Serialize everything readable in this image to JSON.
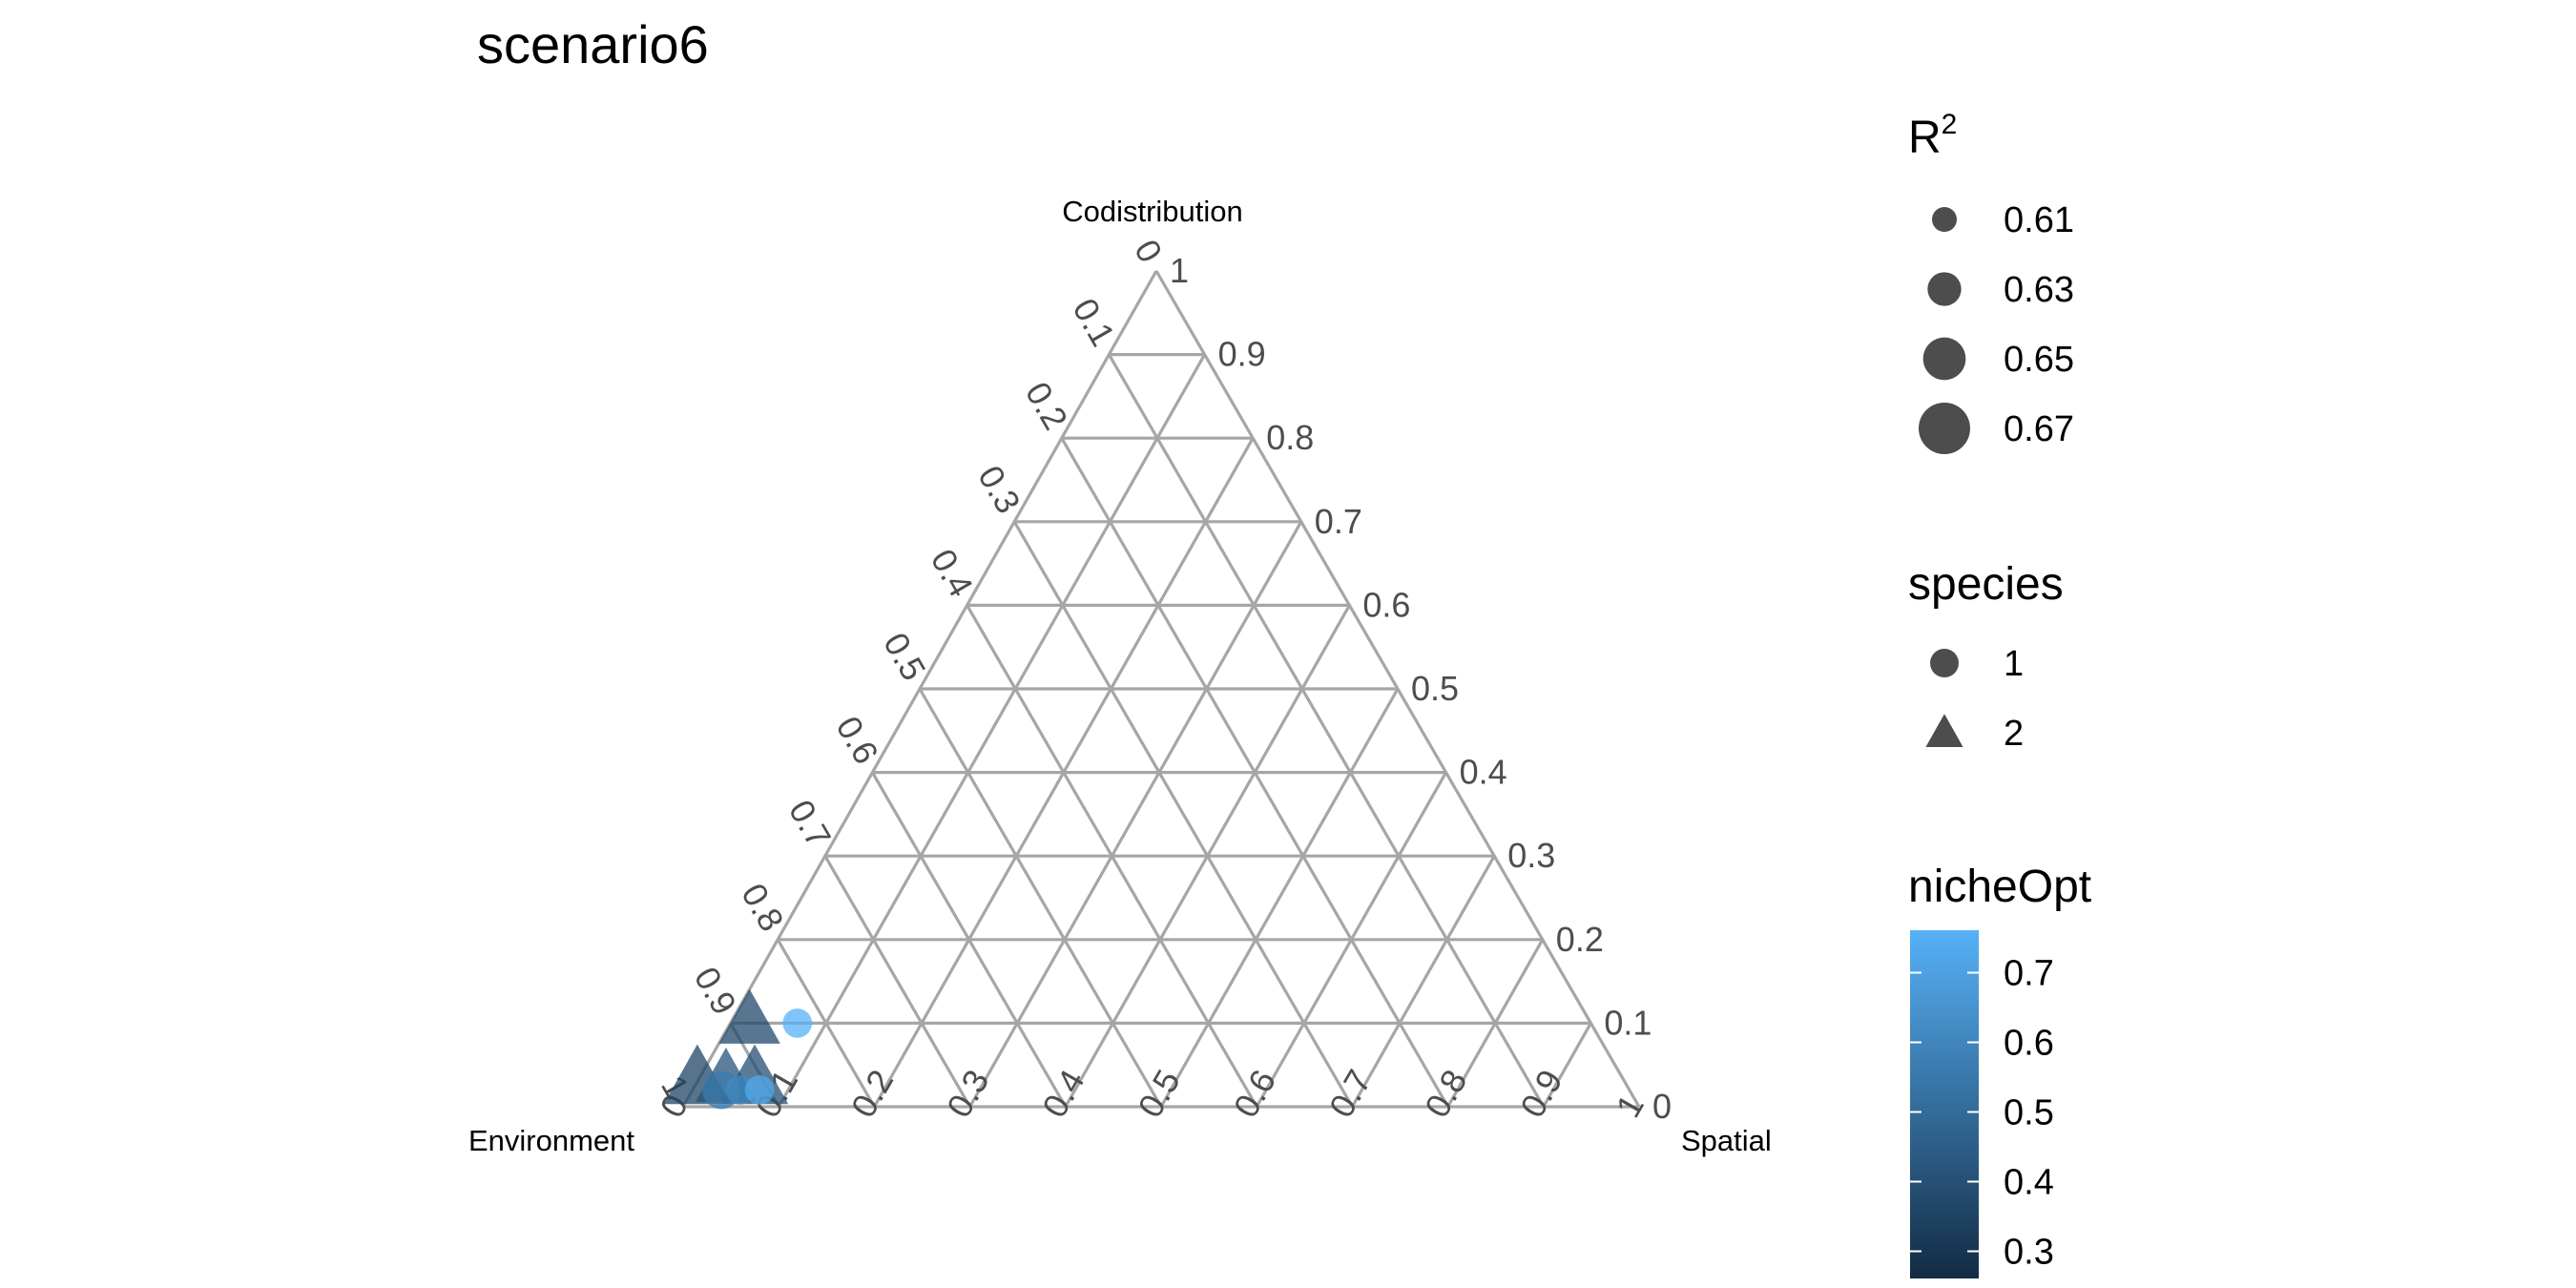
{
  "chart_data": {
    "type": "scatter",
    "subtype": "ternary",
    "title": "scenario6",
    "axes": {
      "top": "Codistribution",
      "left": "Environment",
      "right": "Spatial"
    },
    "ticks": [
      "0",
      "0.1",
      "0.2",
      "0.3",
      "0.4",
      "0.5",
      "0.6",
      "0.7",
      "0.8",
      "0.9",
      "1"
    ],
    "grid": true,
    "points": [
      {
        "environment": 0.97,
        "spatial": 0.0,
        "codistribution": 0.03,
        "species": 2,
        "r2": 0.67,
        "nicheOpt": 0.35
      },
      {
        "environment": 0.94,
        "spatial": 0.03,
        "codistribution": 0.03,
        "species": 2,
        "r2": 0.66,
        "nicheOpt": 0.4
      },
      {
        "environment": 0.91,
        "spatial": 0.06,
        "codistribution": 0.03,
        "species": 2,
        "r2": 0.67,
        "nicheOpt": 0.38
      },
      {
        "environment": 0.88,
        "spatial": 0.02,
        "codistribution": 0.1,
        "species": 2,
        "r2": 0.66,
        "nicheOpt": 0.36
      },
      {
        "environment": 0.95,
        "spatial": 0.03,
        "codistribution": 0.02,
        "species": 1,
        "r2": 0.64,
        "nicheOpt": 0.55
      },
      {
        "environment": 0.93,
        "spatial": 0.05,
        "codistribution": 0.02,
        "species": 1,
        "r2": 0.62,
        "nicheOpt": 0.6
      },
      {
        "environment": 0.91,
        "spatial": 0.07,
        "codistribution": 0.02,
        "species": 1,
        "r2": 0.62,
        "nicheOpt": 0.72
      },
      {
        "environment": 0.83,
        "spatial": 0.07,
        "codistribution": 0.1,
        "species": 1,
        "r2": 0.62,
        "nicheOpt": 0.75
      }
    ],
    "legends": {
      "size": {
        "title_base": "R",
        "title_sup": "2",
        "entries": [
          "0.61",
          "0.63",
          "0.65",
          "0.67"
        ],
        "values": [
          0.61,
          0.63,
          0.65,
          0.67
        ]
      },
      "shape": {
        "title": "species",
        "entries": [
          "1",
          "2"
        ],
        "shapes": [
          "circle",
          "triangle"
        ]
      },
      "color": {
        "title": "nicheOpt",
        "ticks": [
          "0.7",
          "0.6",
          "0.5",
          "0.4",
          "0.3"
        ],
        "tick_values": [
          0.7,
          0.6,
          0.5,
          0.4,
          0.3
        ],
        "range": [
          0.25,
          0.75
        ],
        "low_color": "#132B43",
        "high_color": "#56B1F7"
      }
    },
    "colors": {
      "grid": "#a6a6a6",
      "legend_marker": "#4d4d4d"
    }
  }
}
